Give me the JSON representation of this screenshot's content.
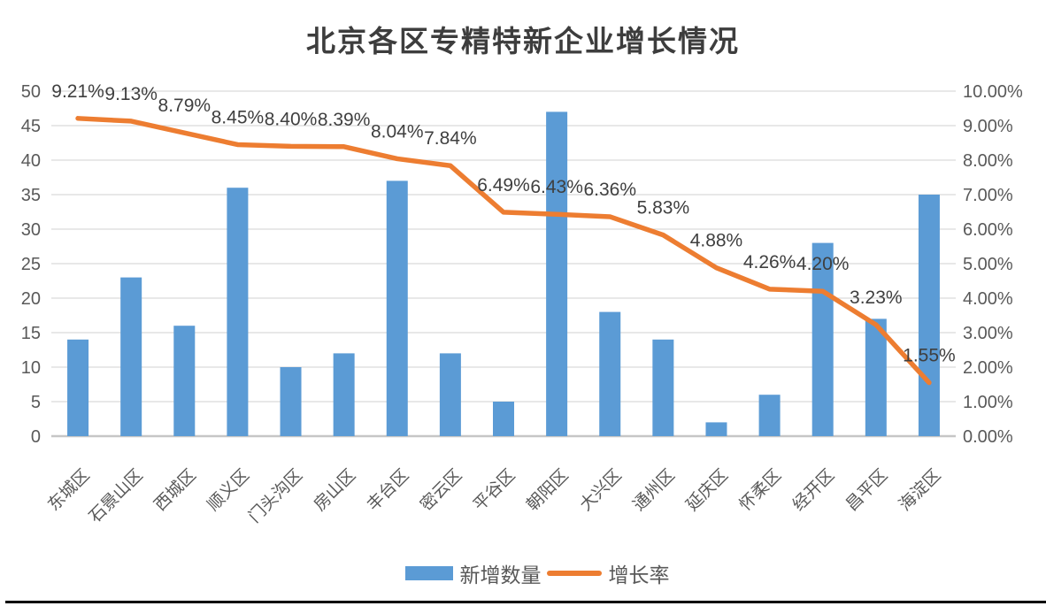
{
  "title": "北京各区专精特新企业增长情况",
  "chart_data": {
    "type": "bar",
    "subtype": "column-line-combo",
    "categories": [
      "东城区",
      "石景山区",
      "西城区",
      "顺义区",
      "门头沟区",
      "房山区",
      "丰台区",
      "密云区",
      "平谷区",
      "朝阳区",
      "大兴区",
      "通州区",
      "延庆区",
      "怀柔区",
      "经开区",
      "昌平区",
      "海淀区"
    ],
    "series": [
      {
        "name": "新增数量",
        "type": "bar",
        "axis": "left",
        "color": "#5B9BD5",
        "values": [
          14,
          23,
          16,
          36,
          10,
          12,
          37,
          12,
          5,
          47,
          18,
          14,
          2,
          6,
          28,
          17,
          35
        ]
      },
      {
        "name": "增长率",
        "type": "line",
        "axis": "right",
        "color": "#ED7D31",
        "values": [
          9.21,
          9.13,
          8.79,
          8.45,
          8.4,
          8.39,
          8.04,
          7.84,
          6.49,
          6.43,
          6.36,
          5.83,
          4.88,
          4.26,
          4.2,
          3.23,
          1.55
        ],
        "data_labels": [
          "9.21%",
          "9.13%",
          "8.79%",
          "8.45%",
          "8.40%",
          "8.39%",
          "8.04%",
          "7.84%",
          "6.49%",
          "6.43%",
          "6.36%",
          "5.83%",
          "4.88%",
          "4.26%",
          "4.20%",
          "3.23%",
          "1.55%"
        ]
      }
    ],
    "left_axis": {
      "min": 0,
      "max": 50,
      "step": 5,
      "tick_labels": [
        "0",
        "5",
        "10",
        "15",
        "20",
        "25",
        "30",
        "35",
        "40",
        "45",
        "50"
      ]
    },
    "right_axis": {
      "min": 0,
      "max": 10,
      "step": 1,
      "tick_labels": [
        "0.00%",
        "1.00%",
        "2.00%",
        "3.00%",
        "4.00%",
        "5.00%",
        "6.00%",
        "7.00%",
        "8.00%",
        "9.00%",
        "10.00%"
      ]
    },
    "grid": true,
    "legend_position": "bottom"
  },
  "legend": {
    "items": [
      {
        "label": "新增数量",
        "marker": "rect",
        "color": "#5B9BD5"
      },
      {
        "label": "增长率",
        "marker": "line",
        "color": "#ED7D31"
      }
    ]
  },
  "colors": {
    "bar": "#5B9BD5",
    "line": "#ED7D31",
    "gridline": "#D9D9D9",
    "axis_line": "#C6C6C6",
    "axis_text": "#595959",
    "data_label_text": "#3f3f3f",
    "title_text": "#3d3d3d"
  }
}
